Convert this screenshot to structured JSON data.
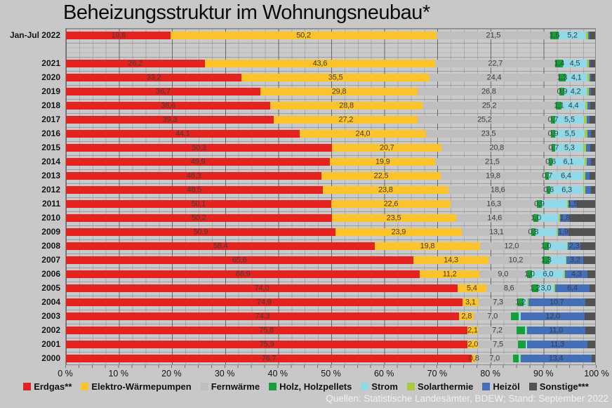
{
  "title": "Beheizungsstruktur im Wohnungsneubau*",
  "source": "Quellen: Statistische Landesämter, BDEW; Stand: September 2022",
  "chart_data": {
    "type": "bar",
    "orientation": "horizontal",
    "stacked": true,
    "unit": "percent",
    "xlim": [
      0,
      100
    ],
    "grid": "on",
    "legend_position": "bottom",
    "x_axis": {
      "tick_labels": [
        "0 %",
        "10 %",
        "20 %",
        "30 %",
        "40 %",
        "50 %",
        "60 %",
        "70 %",
        "80 %",
        "90 %",
        "100 %"
      ],
      "tick_step": 10
    },
    "categories": [
      {
        "name": "Erdgas**",
        "color": "#e42321"
      },
      {
        "name": "Elektro-Wärmepumpen",
        "color": "#fcc32a"
      },
      {
        "name": "Fernwärme",
        "color": "#bfbfbf"
      },
      {
        "name": "Holz, Holzpellets",
        "color": "#15a03c"
      },
      {
        "name": "Strom",
        "color": "#90d9e9"
      },
      {
        "name": "Solarthermie",
        "color": "#a8cb3d"
      },
      {
        "name": "Heizöl",
        "color": "#4570b8"
      },
      {
        "name": "Sonstige***",
        "color": "#525252"
      }
    ],
    "rows": [
      {
        "year": "Jan-Jul 2022",
        "values": [
          19.8,
          50.2,
          21.5,
          1.6,
          5.2,
          0.4,
          0.3,
          1.0
        ],
        "labels": [
          "19,8",
          "50,2",
          "21,5",
          "1,6",
          "5,2",
          "",
          "",
          ""
        ]
      },
      {
        "year": "",
        "values": null,
        "labels": null
      },
      {
        "year": "2021",
        "values": [
          26.2,
          43.6,
          22.7,
          1.4,
          4.5,
          0.4,
          0.3,
          0.9
        ],
        "labels": [
          "26,2",
          "43,6",
          "22,7",
          "1,4",
          "4,5",
          "",
          "",
          ""
        ]
      },
      {
        "year": "2020",
        "values": [
          33.2,
          35.5,
          24.4,
          1.3,
          4.1,
          0.4,
          0.3,
          0.8
        ],
        "labels": [
          "33,2",
          "35,5",
          "24,4",
          "1,3",
          "4,1",
          "",
          "",
          ""
        ]
      },
      {
        "year": "2019",
        "values": [
          36.7,
          29.8,
          26.8,
          0.9,
          4.2,
          0.4,
          0.4,
          0.8
        ],
        "labels": [
          "36,7",
          "29,8",
          "26,8",
          "0,9",
          "4,2",
          "",
          "",
          ""
        ]
      },
      {
        "year": "2018",
        "values": [
          38.6,
          28.8,
          25.2,
          1.1,
          4.4,
          0.5,
          0.5,
          0.9
        ],
        "labels": [
          "38,6",
          "28,8",
          "25,2",
          "1,1",
          "4,4",
          "",
          "",
          ""
        ]
      },
      {
        "year": "2017",
        "values": [
          39.3,
          27.2,
          25.2,
          0.7,
          5.5,
          0.5,
          0.6,
          1.0
        ],
        "labels": [
          "39,3",
          "27,2",
          "25,2",
          "0,7",
          "5,5",
          "",
          "",
          ""
        ]
      },
      {
        "year": "2016",
        "values": [
          44.1,
          24.0,
          23.5,
          0.9,
          5.5,
          0.5,
          0.7,
          0.8
        ],
        "labels": [
          "44,1",
          "24,0",
          "23,5",
          "0,9",
          "5,5",
          "",
          "",
          ""
        ]
      },
      {
        "year": "2015",
        "values": [
          50.3,
          20.7,
          20.8,
          0.7,
          5.3,
          0.5,
          0.8,
          0.9
        ],
        "labels": [
          "50,3",
          "20,7",
          "20,8",
          "0,7",
          "5,3",
          "",
          "",
          ""
        ]
      },
      {
        "year": "2014",
        "values": [
          49.9,
          19.9,
          21.5,
          0.6,
          6.1,
          0.4,
          0.8,
          0.8
        ],
        "labels": [
          "49,9",
          "19,9",
          "21,5",
          "0,6",
          "6,1",
          "",
          "",
          ""
        ]
      },
      {
        "year": "2013",
        "values": [
          48.3,
          22.5,
          19.8,
          0.7,
          6.4,
          0.4,
          0.9,
          1.0
        ],
        "labels": [
          "48,3",
          "22,5",
          "19,8",
          "0,7",
          "6,4",
          "",
          "",
          ""
        ]
      },
      {
        "year": "2012",
        "values": [
          48.5,
          23.8,
          18.6,
          0.6,
          6.3,
          0.4,
          1.0,
          0.8
        ],
        "labels": [
          "48,5",
          "23,8",
          "18,6",
          "0,6",
          "6,3",
          "",
          "",
          ""
        ]
      },
      {
        "year": "2011",
        "values": [
          50.1,
          22.6,
          16.3,
          0.9,
          4.8,
          0.3,
          1.5,
          3.5
        ],
        "labels": [
          "50,1",
          "22,6",
          "16,3",
          "0,9",
          "",
          "",
          "1,5",
          ""
        ]
      },
      {
        "year": "2010",
        "values": [
          50.2,
          23.5,
          14.6,
          1.0,
          3.8,
          0.3,
          1.8,
          4.8
        ],
        "labels": [
          "50,2",
          "23,5",
          "14,6",
          "1,0",
          "",
          "",
          "1,8",
          ""
        ]
      },
      {
        "year": "2009",
        "values": [
          50.9,
          23.9,
          13.1,
          0.8,
          4.0,
          0.3,
          1.9,
          5.1
        ],
        "labels": [
          "50,9",
          "23,9",
          "13,1",
          "0,8",
          "",
          "",
          "1,9",
          ""
        ]
      },
      {
        "year": "2008",
        "values": [
          58.4,
          19.8,
          12.0,
          1.0,
          3.5,
          0.2,
          2.3,
          2.8
        ],
        "labels": [
          "58,4",
          "19,8",
          "12,0",
          "1,0",
          "",
          "",
          "2,3",
          ""
        ]
      },
      {
        "year": "2007",
        "values": [
          65.6,
          14.3,
          10.2,
          1.3,
          3.0,
          0.2,
          3.2,
          2.2
        ],
        "labels": [
          "65,6",
          "14,3",
          "10,2",
          "1,3",
          "",
          "",
          "3,2",
          ""
        ]
      },
      {
        "year": "2006",
        "values": [
          66.9,
          11.2,
          9.0,
          1.0,
          6.0,
          0.2,
          4.3,
          1.4
        ],
        "labels": [
          "66,9",
          "11,2",
          "9,0",
          "1,0",
          "6,0",
          "",
          "4,3",
          ""
        ]
      },
      {
        "year": "2005",
        "values": [
          74.0,
          5.4,
          8.6,
          1.2,
          3.0,
          0.3,
          6.4,
          1.1
        ],
        "labels": [
          "74,0",
          "5,4",
          "8,6",
          "1,2",
          "3,0",
          "",
          "6,4",
          ""
        ]
      },
      {
        "year": "2004",
        "values": [
          74.9,
          3.1,
          7.3,
          1.2,
          0.7,
          0.2,
          10.7,
          1.9
        ],
        "labels": [
          "74,9",
          "3,1",
          "7,3",
          "1,2",
          "",
          "",
          "10,7",
          ""
        ]
      },
      {
        "year": "2003",
        "values": [
          74.3,
          2.8,
          7.0,
          1.5,
          0.3,
          0.1,
          12.0,
          2.0
        ],
        "labels": [
          "74,3",
          "2,8",
          "7,0",
          "",
          "",
          "",
          "12,0",
          ""
        ]
      },
      {
        "year": "2002",
        "values": [
          75.8,
          2.1,
          7.2,
          1.6,
          0.3,
          0.1,
          11.0,
          1.9
        ],
        "labels": [
          "75,8",
          "2,1",
          "7,2",
          "",
          "",
          "",
          "11,0",
          ""
        ]
      },
      {
        "year": "2001",
        "values": [
          75.9,
          2.0,
          7.5,
          1.5,
          0.2,
          0.1,
          11.3,
          1.5
        ],
        "labels": [
          "75,9",
          "2,0",
          "7,5",
          "",
          "",
          "",
          "11,3",
          ""
        ]
      },
      {
        "year": "2000",
        "values": [
          76.7,
          0.8,
          7.0,
          1.1,
          0.2,
          0.1,
          13.4,
          0.7
        ],
        "labels": [
          "76,7",
          "0,8",
          "7,0",
          "",
          "",
          "",
          "13,4",
          ""
        ]
      }
    ]
  }
}
